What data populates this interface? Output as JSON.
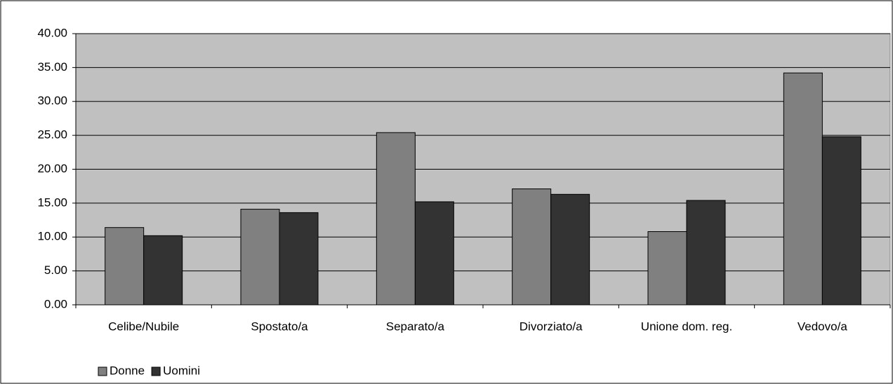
{
  "chart_data": {
    "type": "bar",
    "categories": [
      "Celibe/Nubile",
      "Spostato/a",
      "Separato/a",
      "Divorziato/a",
      "Unione dom. reg.",
      "Vedovo/a"
    ],
    "series": [
      {
        "name": "Donne",
        "color": "#808080",
        "values": [
          11.4,
          14.1,
          25.4,
          17.1,
          10.8,
          34.2
        ]
      },
      {
        "name": "Uomini",
        "color": "#333333",
        "values": [
          10.2,
          13.6,
          15.2,
          16.3,
          15.4,
          24.8
        ]
      }
    ],
    "ylim": [
      0,
      40
    ],
    "yticks": [
      {
        "value": 0,
        "label": "0.00"
      },
      {
        "value": 5,
        "label": "5.00"
      },
      {
        "value": 10,
        "label": "10.00"
      },
      {
        "value": 15,
        "label": "15.00"
      },
      {
        "value": 20,
        "label": "20.00"
      },
      {
        "value": 25,
        "label": "25.00"
      },
      {
        "value": 30,
        "label": "30.00"
      },
      {
        "value": 35,
        "label": "35.00"
      },
      {
        "value": 40,
        "label": "40.00"
      }
    ],
    "grid": true,
    "plot_background": "#c0c0c0",
    "legend": "bottom-left"
  }
}
